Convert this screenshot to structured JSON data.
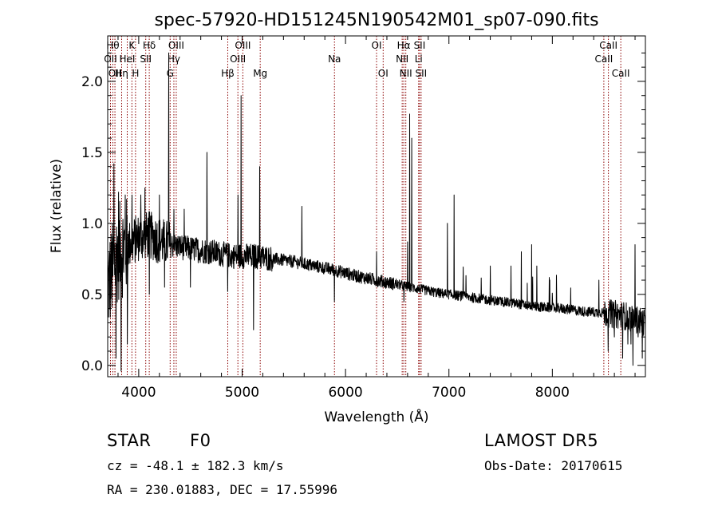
{
  "info": {
    "object_class": "STAR",
    "subclass": "F0",
    "survey": "LAMOST DR5",
    "redshift": "cz = -48.1 ± 182.3 km/s",
    "obs_date": "Obs-Date: 20170615",
    "coords": "RA = 230.01883, DEC =  17.55996"
  },
  "chart_data": {
    "type": "line",
    "title": "spec-57920-HD151245N190542M01_sp07-090.fits",
    "xlabel": "Wavelength (Å)",
    "ylabel": "Flux (relative)",
    "xlim": [
      3700,
      8900
    ],
    "ylim": [
      -0.08,
      2.32
    ],
    "xticks": [
      4000,
      5000,
      6000,
      7000,
      8000
    ],
    "yticks": [
      0.0,
      0.5,
      1.0,
      1.5,
      2.0
    ],
    "ytick_labels": [
      "0.0",
      "0.5",
      "1.0",
      "1.5",
      "2.0"
    ],
    "grid": false,
    "line_color": "#000000",
    "marker_line_color": "#8b0000",
    "spectrum_anchors": [
      [
        3700,
        0.55
      ],
      [
        3800,
        0.8
      ],
      [
        3900,
        0.85
      ],
      [
        4000,
        0.9
      ],
      [
        4100,
        0.92
      ],
      [
        4200,
        0.88
      ],
      [
        4300,
        0.85
      ],
      [
        4500,
        0.82
      ],
      [
        4700,
        0.8
      ],
      [
        4900,
        0.77
      ],
      [
        5100,
        0.77
      ],
      [
        5300,
        0.75
      ],
      [
        5500,
        0.73
      ],
      [
        5700,
        0.7
      ],
      [
        5900,
        0.67
      ],
      [
        6100,
        0.63
      ],
      [
        6300,
        0.6
      ],
      [
        6500,
        0.57
      ],
      [
        6700,
        0.54
      ],
      [
        6900,
        0.51
      ],
      [
        7100,
        0.49
      ],
      [
        7300,
        0.47
      ],
      [
        7500,
        0.45
      ],
      [
        7700,
        0.43
      ],
      [
        7900,
        0.41
      ],
      [
        8100,
        0.4
      ],
      [
        8300,
        0.38
      ],
      [
        8500,
        0.37
      ],
      [
        8700,
        0.35
      ],
      [
        8900,
        0.3
      ]
    ],
    "spikes": [
      [
        3760,
        1.42
      ],
      [
        3780,
        0.05
      ],
      [
        3805,
        1.22
      ],
      [
        3830,
        -0.04
      ],
      [
        3870,
        1.2
      ],
      [
        3890,
        0.15
      ],
      [
        3935,
        1.2
      ],
      [
        3970,
        1.05
      ],
      [
        4020,
        1.2
      ],
      [
        4060,
        1.25
      ],
      [
        4102,
        0.5
      ],
      [
        4200,
        1.2
      ],
      [
        4250,
        0.55
      ],
      [
        4290,
        2.2
      ],
      [
        4340,
        1.1
      ],
      [
        4440,
        1.1
      ],
      [
        4500,
        0.55
      ],
      [
        4660,
        1.5
      ],
      [
        4861,
        0.52
      ],
      [
        4959,
        1.2
      ],
      [
        4990,
        1.9
      ],
      [
        5090,
        0.7
      ],
      [
        5110,
        0.25
      ],
      [
        5170,
        1.4
      ],
      [
        5577,
        1.12
      ],
      [
        5893,
        0.45
      ],
      [
        6300,
        0.8
      ],
      [
        6565,
        0.45
      ],
      [
        6600,
        0.87
      ],
      [
        6620,
        1.77
      ],
      [
        6640,
        1.6
      ],
      [
        6984,
        1.0
      ],
      [
        7050,
        1.2
      ],
      [
        7400,
        0.7
      ],
      [
        7600,
        0.7
      ],
      [
        7700,
        0.8
      ],
      [
        7800,
        0.85
      ],
      [
        7850,
        0.7
      ],
      [
        8450,
        0.6
      ],
      [
        8540,
        0.1
      ],
      [
        8600,
        0.2
      ],
      [
        8680,
        0.05
      ],
      [
        8700,
        0.25
      ],
      [
        8730,
        0.15
      ],
      [
        8760,
        0.15
      ],
      [
        8780,
        0.0
      ],
      [
        8800,
        0.85
      ],
      [
        8830,
        0.2
      ],
      [
        8870,
        0.05
      ]
    ],
    "line_markers": [
      {
        "wavelength": 3727,
        "label": "OII",
        "row": 2
      },
      {
        "wavelength": 3750,
        "label": "Hθ",
        "row": 1
      },
      {
        "wavelength": 3770,
        "label": "OII",
        "row": 3
      },
      {
        "wavelength": 3835,
        "label": "Hη",
        "row": 3
      },
      {
        "wavelength": 3889,
        "label": "HeI",
        "row": 2
      },
      {
        "wavelength": 3934,
        "label": "K",
        "row": 1
      },
      {
        "wavelength": 3969,
        "label": "H",
        "row": 3
      },
      {
        "wavelength": 4068,
        "label": "SII",
        "row": 2
      },
      {
        "wavelength": 4102,
        "label": "Hδ",
        "row": 1
      },
      {
        "wavelength": 4304,
        "label": "G",
        "row": 3
      },
      {
        "wavelength": 4340,
        "label": "Hγ",
        "row": 2
      },
      {
        "wavelength": 4363,
        "label": "OIII",
        "row": 1
      },
      {
        "wavelength": 4861,
        "label": "Hβ",
        "row": 3
      },
      {
        "wavelength": 4959,
        "label": "OIII",
        "row": 2
      },
      {
        "wavelength": 5007,
        "label": "OIII",
        "row": 1
      },
      {
        "wavelength": 5175,
        "label": "Mg",
        "row": 3
      },
      {
        "wavelength": 5893,
        "label": "Na",
        "row": 2
      },
      {
        "wavelength": 6300,
        "label": "OI",
        "row": 1
      },
      {
        "wavelength": 6364,
        "label": "OI",
        "row": 3
      },
      {
        "wavelength": 6548,
        "label": "NII",
        "row": 2
      },
      {
        "wavelength": 6563,
        "label": "Hα",
        "row": 1
      },
      {
        "wavelength": 6583,
        "label": "NII",
        "row": 3
      },
      {
        "wavelength": 6707,
        "label": "Li",
        "row": 2
      },
      {
        "wavelength": 6716,
        "label": "SII",
        "row": 1
      },
      {
        "wavelength": 6731,
        "label": "SII",
        "row": 3
      },
      {
        "wavelength": 8498,
        "label": "CaII",
        "row": 2
      },
      {
        "wavelength": 8542,
        "label": "CaII",
        "row": 1
      },
      {
        "wavelength": 8662,
        "label": "CaII",
        "row": 3
      }
    ]
  }
}
